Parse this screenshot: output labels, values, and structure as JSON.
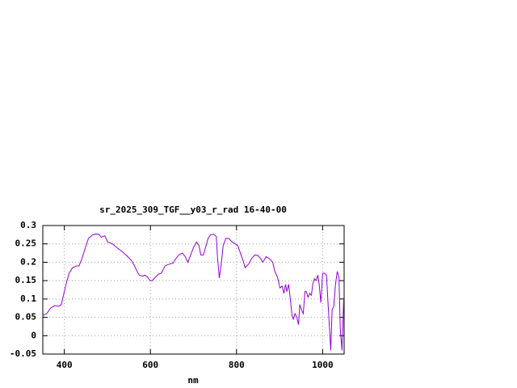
{
  "chart_data": {
    "type": "line",
    "title": "sr_2025_309_TGF__y03_r_rad 16-40-00",
    "x_label": "nm",
    "xlim": [
      350,
      1050
    ],
    "xticks": [
      400,
      600,
      800,
      1000
    ],
    "ylim": [
      -0.05,
      0.3
    ],
    "yticks": [
      -0.05,
      0,
      0.05,
      0.1,
      0.15,
      0.2,
      0.25,
      0.3
    ],
    "grid": true,
    "x": [
      350,
      359,
      368,
      378,
      387,
      393,
      396,
      404,
      411,
      419,
      428,
      434,
      441,
      449,
      456,
      466,
      475,
      481,
      486,
      494,
      501,
      512,
      522,
      531,
      541,
      550,
      556,
      563,
      569,
      574,
      582,
      587,
      593,
      599,
      604,
      612,
      619,
      625,
      634,
      644,
      653,
      659,
      666,
      674,
      681,
      687,
      692,
      700,
      707,
      713,
      717,
      723,
      728,
      734,
      740,
      747,
      753,
      756,
      760,
      764,
      769,
      775,
      782,
      790,
      797,
      803,
      809,
      815,
      820,
      828,
      835,
      843,
      850,
      856,
      861,
      869,
      876,
      884,
      889,
      895,
      901,
      906,
      910,
      914,
      917,
      921,
      925,
      929,
      932,
      936,
      940,
      944,
      947,
      951,
      955,
      959,
      962,
      966,
      970,
      974,
      977,
      981,
      985,
      989,
      992,
      996,
      1000,
      1004,
      1009,
      1013,
      1017,
      1019,
      1022,
      1026,
      1030,
      1034,
      1038,
      1041,
      1045,
      1049
    ],
    "series": [
      {
        "color": "#9400d3",
        "values": [
          0.055,
          0.06,
          0.075,
          0.082,
          0.08,
          0.085,
          0.1,
          0.14,
          0.17,
          0.185,
          0.19,
          0.19,
          0.21,
          0.24,
          0.265,
          0.275,
          0.277,
          0.275,
          0.268,
          0.272,
          0.255,
          0.25,
          0.24,
          0.232,
          0.222,
          0.212,
          0.205,
          0.19,
          0.175,
          0.165,
          0.162,
          0.165,
          0.16,
          0.15,
          0.15,
          0.16,
          0.168,
          0.17,
          0.19,
          0.195,
          0.198,
          0.21,
          0.22,
          0.225,
          0.215,
          0.2,
          0.215,
          0.24,
          0.255,
          0.245,
          0.22,
          0.22,
          0.24,
          0.265,
          0.275,
          0.276,
          0.27,
          0.21,
          0.157,
          0.19,
          0.245,
          0.265,
          0.265,
          0.255,
          0.25,
          0.245,
          0.225,
          0.205,
          0.185,
          0.195,
          0.21,
          0.22,
          0.218,
          0.21,
          0.2,
          0.215,
          0.21,
          0.2,
          0.175,
          0.16,
          0.13,
          0.135,
          0.115,
          0.14,
          0.12,
          0.14,
          0.1,
          0.055,
          0.045,
          0.06,
          0.05,
          0.03,
          0.085,
          0.07,
          0.06,
          0.12,
          0.12,
          0.105,
          0.115,
          0.11,
          0.14,
          0.155,
          0.15,
          0.165,
          0.14,
          0.09,
          0.17,
          0.17,
          0.165,
          0.08,
          0.0,
          -0.04,
          0.07,
          0.08,
          0.14,
          0.175,
          0.16,
          0.02,
          -0.04,
          0.1
        ]
      }
    ]
  }
}
